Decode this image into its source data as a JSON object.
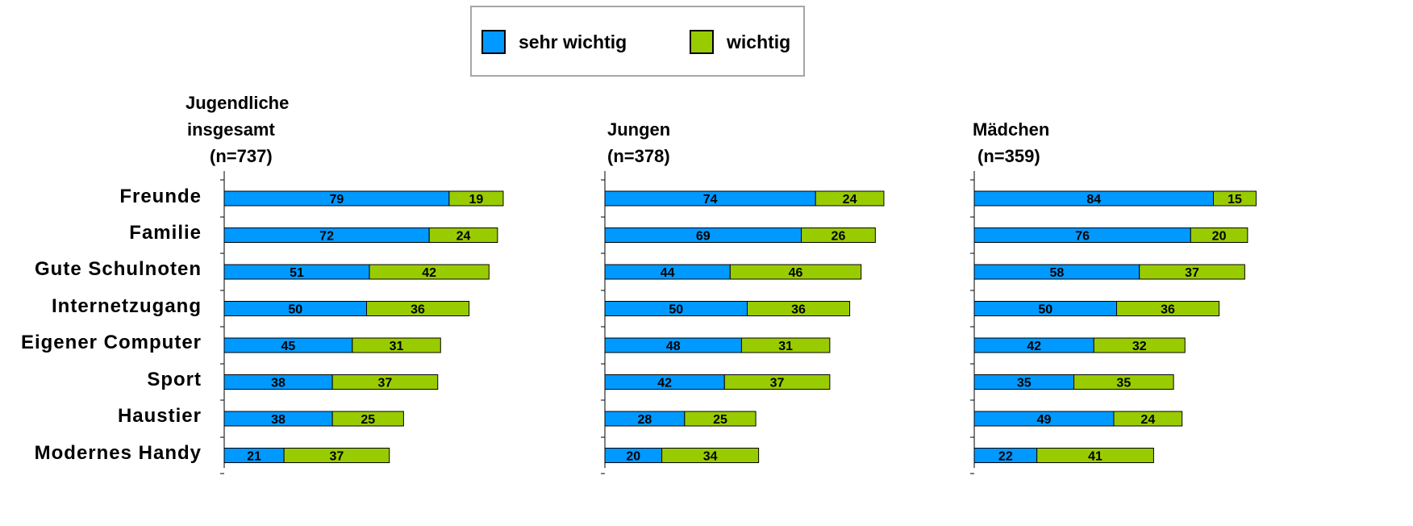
{
  "legend": {
    "sehr_wichtig": "sehr wichtig",
    "wichtig": "wichtig"
  },
  "colors": {
    "sehr_wichtig": "#0099ff",
    "wichtig": "#99cc00"
  },
  "chart_data": {
    "type": "bar",
    "orientation": "horizontal",
    "stacked": true,
    "categories": [
      "Freunde",
      "Familie",
      "Gute Schulnoten",
      "Internetzugang",
      "Eigener Computer",
      "Sport",
      "Haustier",
      "Modernes Handy"
    ],
    "legend_position": "top-center",
    "grid": false,
    "panels": [
      {
        "title_lines": [
          "Jugendliche",
          "insgesamt",
          "(n=737)"
        ],
        "series": [
          {
            "name": "sehr wichtig",
            "values": [
              79,
              72,
              51,
              50,
              45,
              38,
              38,
              21
            ]
          },
          {
            "name": "wichtig",
            "values": [
              19,
              24,
              42,
              36,
              31,
              37,
              25,
              37
            ]
          }
        ]
      },
      {
        "title_lines": [
          "Jungen",
          "(n=378)"
        ],
        "series": [
          {
            "name": "sehr wichtig",
            "values": [
              74,
              69,
              44,
              50,
              48,
              42,
              28,
              20
            ]
          },
          {
            "name": "wichtig",
            "values": [
              24,
              26,
              46,
              36,
              31,
              37,
              25,
              34
            ]
          }
        ]
      },
      {
        "title_lines": [
          "Mädchen",
          "(n=359)"
        ],
        "series": [
          {
            "name": "sehr wichtig",
            "values": [
              84,
              76,
              58,
              50,
              42,
              35,
              49,
              22
            ]
          },
          {
            "name": "wichtig",
            "values": [
              15,
              20,
              37,
              36,
              32,
              35,
              24,
              41
            ]
          }
        ]
      }
    ]
  }
}
